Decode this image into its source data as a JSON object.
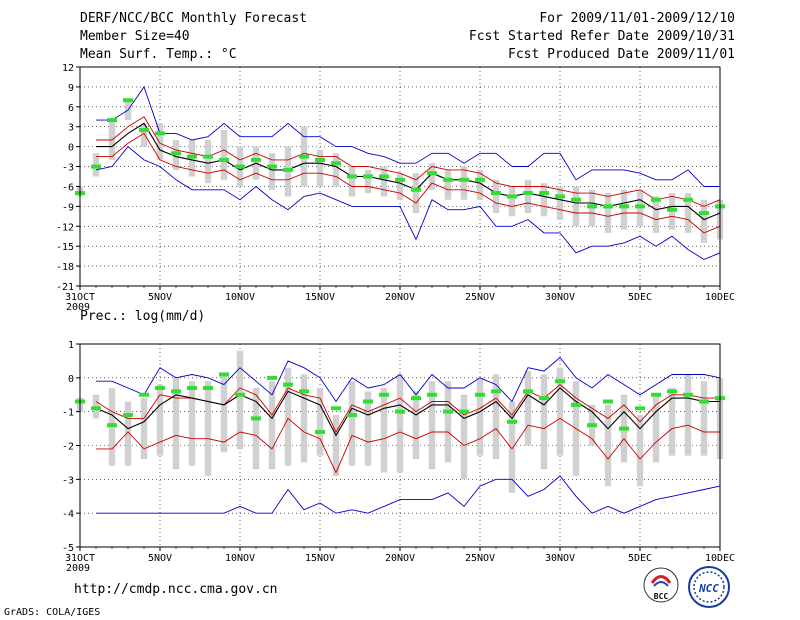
{
  "header": {
    "left_line1": "DERF/NCC/BCC Monthly Forecast",
    "left_line2": "Member Size=40",
    "right_line1": "For 2009/11/01-2009/12/10",
    "right_line2": "Fcst Started Refer Date 2009/10/31",
    "right_line3": "Fcst Produced Date 2009/11/01"
  },
  "footer": {
    "url": "http://cmdp.ncc.cma.gov.cn",
    "credit": "GrADS: COLA/IGES",
    "logo_bcc": "BCC",
    "logo_ncc": "NCC"
  },
  "colors": {
    "ensemble_mean": "#000000",
    "ensemble_range": "#0000cc",
    "spread_band": "#cc0000",
    "box": "#d0d0d0",
    "observed": "#33dd33",
    "grid": "#000000"
  },
  "chart_data": [
    {
      "type": "line",
      "title": "Mean Surf. Temp.: °C",
      "x": [
        1,
        2,
        3,
        4,
        5,
        6,
        7,
        8,
        9,
        10,
        11,
        12,
        13,
        14,
        15,
        16,
        17,
        18,
        19,
        20,
        21,
        22,
        23,
        24,
        25,
        26,
        27,
        28,
        29,
        30,
        31,
        32,
        33,
        34,
        35,
        36,
        37,
        38,
        39,
        40,
        41
      ],
      "x_ticks": [
        "31OCT",
        "5NOV",
        "10NOV",
        "15NOV",
        "20NOV",
        "25NOV",
        "30NOV",
        "5DEC",
        "10DEC"
      ],
      "x_tick_positions": [
        1,
        6,
        11,
        16,
        21,
        26,
        31,
        36,
        41
      ],
      "year_label": "2009",
      "ylim": [
        -21,
        12
      ],
      "y_ticks": [
        -21,
        -18,
        -15,
        -12,
        -9,
        -6,
        -3,
        0,
        3,
        6,
        9,
        12
      ],
      "series": [
        {
          "name": "ensemble-max",
          "values": [
            null,
            4,
            4,
            5.5,
            9,
            2,
            2,
            1,
            1.5,
            3.5,
            1.5,
            1.5,
            1.5,
            3.5,
            1.5,
            1.5,
            0,
            0,
            -1,
            -1.5,
            -2.5,
            -2.5,
            -1,
            -1,
            -2.5,
            -1,
            -1,
            -3,
            -3,
            -1,
            -1,
            -5,
            -3.5,
            -3.5,
            -3.5,
            -4,
            -5,
            -5,
            -3.5,
            -6,
            -6
          ]
        },
        {
          "name": "spread-upper",
          "values": [
            null,
            1,
            1,
            3,
            4.5,
            0.5,
            -0.5,
            -1,
            -1.5,
            -0.5,
            -2,
            -1,
            -2,
            -2,
            -1,
            -1.5,
            -1.5,
            -3,
            -3,
            -3.5,
            -4,
            -5,
            -3,
            -3.5,
            -3.5,
            -4,
            -5.5,
            -6,
            -6,
            -6,
            -6.5,
            -7,
            -7,
            -7.5,
            -7,
            -6.5,
            -8,
            -7.5,
            -8,
            -9,
            -8
          ]
        },
        {
          "name": "ensemble-mean",
          "values": [
            null,
            0,
            0,
            2,
            3.5,
            -0.5,
            -1.5,
            -2,
            -2.5,
            -2,
            -3.5,
            -2.5,
            -3.5,
            -3.5,
            -2.5,
            -2.5,
            -3,
            -4.5,
            -4.5,
            -5,
            -5.5,
            -6.5,
            -4,
            -5,
            -5,
            -5.5,
            -7,
            -7.5,
            -7,
            -7.5,
            -8,
            -8.5,
            -8.5,
            -9,
            -8.5,
            -8,
            -9.5,
            -9,
            -9,
            -11,
            -10
          ]
        },
        {
          "name": "spread-lower",
          "values": [
            null,
            -1.5,
            -1.5,
            0.5,
            2,
            -2,
            -3,
            -3.5,
            -4,
            -3.5,
            -5,
            -4,
            -5,
            -5,
            -4,
            -4,
            -4.5,
            -6,
            -6,
            -6.5,
            -7,
            -8.5,
            -5.5,
            -6.5,
            -6.5,
            -7,
            -8.5,
            -9,
            -8.5,
            -9,
            -9.5,
            -10,
            -10,
            -10.5,
            -10,
            -10,
            -11,
            -10.5,
            -11,
            -13,
            -12
          ]
        },
        {
          "name": "ensemble-min",
          "values": [
            null,
            -3.5,
            -3,
            0,
            -2,
            -3,
            -5,
            -6.5,
            -6.5,
            -6.5,
            -8,
            -6,
            -8,
            -9.5,
            -7.5,
            -7,
            -8,
            -9,
            -9,
            -9,
            -9,
            -14,
            -8,
            -9.5,
            -9.5,
            -9,
            -12,
            -12,
            -11,
            -13,
            -13,
            -16,
            -15,
            -15,
            -14.5,
            -13.5,
            -15,
            -13.5,
            -15.5,
            -17,
            -16
          ]
        },
        {
          "name": "observed",
          "values": [
            -7,
            -3,
            4,
            7,
            2.5,
            2,
            -1,
            -1.5,
            -1.5,
            -2,
            -3,
            -2,
            -3,
            -3.5,
            -1.5,
            -2,
            -2.5,
            -4.5,
            -4.5,
            -4.5,
            -5,
            -6.5,
            -4,
            -5,
            -5,
            -5,
            -7,
            -7.5,
            -7,
            -7,
            -7.5,
            -8,
            -9,
            -9,
            -9,
            -9,
            -8,
            -9.5,
            -8,
            -10,
            -9
          ]
        }
      ],
      "boxes": [
        [
          -7.5,
          -6
        ],
        [
          -4.5,
          -1
        ],
        [
          -2,
          4
        ],
        [
          4,
          7
        ],
        [
          0,
          3.5
        ],
        [
          -2,
          3.5
        ],
        [
          -3.5,
          1
        ],
        [
          -4.5,
          1
        ],
        [
          -5.5,
          1
        ],
        [
          -5,
          2.5
        ],
        [
          -6,
          0
        ],
        [
          -5,
          0
        ],
        [
          -6.5,
          -1
        ],
        [
          -7.5,
          0
        ],
        [
          -6,
          3
        ],
        [
          -6,
          -0.5
        ],
        [
          -6,
          -1
        ],
        [
          -7.5,
          -3
        ],
        [
          -7,
          -3.5
        ],
        [
          -7.5,
          -3
        ],
        [
          -8,
          -4
        ],
        [
          -10,
          -4
        ],
        [
          -6.5,
          -2.5
        ],
        [
          -8,
          -3.5
        ],
        [
          -8,
          -3
        ],
        [
          -8,
          -3.5
        ],
        [
          -10,
          -5
        ],
        [
          -10.5,
          -6
        ],
        [
          -10,
          -5
        ],
        [
          -10.5,
          -5.5
        ],
        [
          -11,
          -6
        ],
        [
          -12,
          -6
        ],
        [
          -12,
          -6.5
        ],
        [
          -13,
          -7
        ],
        [
          -12.5,
          -6.5
        ],
        [
          -12,
          -6.5
        ],
        [
          -13,
          -7.5
        ],
        [
          -12.5,
          -7
        ],
        [
          -13,
          -7
        ],
        [
          -14.5,
          -8
        ],
        [
          -14,
          -8
        ]
      ]
    },
    {
      "type": "line",
      "title": "Prec.: log(mm/d)",
      "x": [
        1,
        2,
        3,
        4,
        5,
        6,
        7,
        8,
        9,
        10,
        11,
        12,
        13,
        14,
        15,
        16,
        17,
        18,
        19,
        20,
        21,
        22,
        23,
        24,
        25,
        26,
        27,
        28,
        29,
        30,
        31,
        32,
        33,
        34,
        35,
        36,
        37,
        38,
        39,
        40,
        41
      ],
      "x_ticks": [
        "31OCT",
        "5NOV",
        "10NOV",
        "15NOV",
        "20NOV",
        "25NOV",
        "30NOV",
        "5DEC",
        "10DEC"
      ],
      "x_tick_positions": [
        1,
        6,
        11,
        16,
        21,
        26,
        31,
        36,
        41
      ],
      "year_label": "2009",
      "ylim": [
        -5,
        1
      ],
      "y_ticks": [
        -5,
        -4,
        -3,
        -2,
        -1,
        0,
        1
      ],
      "series": [
        {
          "name": "ensemble-max",
          "values": [
            null,
            -0.1,
            -0.1,
            -0.3,
            -0.5,
            0.3,
            0,
            0.1,
            0,
            -0.2,
            0.3,
            -0.1,
            -0.5,
            0.5,
            0.3,
            0,
            -0.7,
            0,
            -0.3,
            -0.2,
            0.1,
            -0.5,
            0.1,
            -0.3,
            -0.3,
            0,
            -0.2,
            -0.7,
            0.3,
            0.2,
            0.6,
            0,
            -0.3,
            0.1,
            -0.2,
            -0.5,
            -0.2,
            0.1,
            0.1,
            0.1,
            0
          ]
        },
        {
          "name": "spread-upper",
          "values": [
            null,
            -0.7,
            -1,
            -1.2,
            -1.2,
            -0.5,
            -0.6,
            -0.6,
            -0.7,
            -0.8,
            -0.3,
            -0.5,
            -1.1,
            -0.3,
            -0.5,
            -0.6,
            -1.6,
            -0.8,
            -1,
            -0.8,
            -0.6,
            -1,
            -0.7,
            -0.7,
            -1.1,
            -0.9,
            -0.6,
            -1.1,
            -0.4,
            -0.6,
            -0.2,
            -0.6,
            -0.9,
            -1.2,
            -0.8,
            -1.3,
            -0.8,
            -0.5,
            -0.5,
            -0.6,
            -0.6
          ]
        },
        {
          "name": "ensemble-mean",
          "values": [
            null,
            -0.9,
            -1.1,
            -1.5,
            -1.3,
            -0.8,
            -0.5,
            -0.6,
            -0.7,
            -0.8,
            -0.5,
            -0.7,
            -1.2,
            -0.4,
            -0.6,
            -0.8,
            -1.7,
            -0.9,
            -1.1,
            -0.9,
            -0.8,
            -1.1,
            -0.8,
            -0.8,
            -1.2,
            -1,
            -0.7,
            -1.2,
            -0.5,
            -0.8,
            -0.3,
            -0.7,
            -1,
            -1.5,
            -1,
            -1.5,
            -1,
            -0.6,
            -0.6,
            -0.7,
            -0.7
          ]
        },
        {
          "name": "spread-lower",
          "values": [
            null,
            -2.1,
            -2.1,
            -1.6,
            -2.1,
            -1.9,
            -1.7,
            -1.8,
            -1.8,
            -1.9,
            -1.6,
            -1.7,
            -2.1,
            -1.2,
            -1.6,
            -1.8,
            -2.8,
            -1.7,
            -1.9,
            -1.8,
            -1.6,
            -1.8,
            -1.6,
            -1.6,
            -2,
            -1.8,
            -1.5,
            -2.1,
            -1.4,
            -1.5,
            -1.2,
            -1.5,
            -1.8,
            -2.4,
            -1.8,
            -2.4,
            -1.9,
            -1.5,
            -1.4,
            -1.6,
            -1.6
          ]
        },
        {
          "name": "ensemble-min",
          "values": [
            null,
            -4,
            -4,
            -4,
            -4,
            -4,
            -4,
            -4,
            -4,
            -4,
            -3.8,
            -4,
            -4,
            -3.3,
            -3.9,
            -3.7,
            -4,
            -3.9,
            -4,
            -3.8,
            -3.6,
            -3.6,
            -3.6,
            -3.4,
            -3.8,
            -3.2,
            -3,
            -3,
            -3.5,
            -3.3,
            -2.9,
            -3.5,
            -4,
            -3.8,
            -4,
            -3.8,
            -3.6,
            -3.5,
            -3.4,
            -3.3,
            -3.2
          ]
        },
        {
          "name": "observed",
          "values": [
            -0.7,
            -0.9,
            -1.4,
            -1.1,
            -0.5,
            -0.3,
            -0.4,
            -0.3,
            -0.3,
            0.1,
            -0.5,
            -1.2,
            0,
            -0.2,
            -0.4,
            -1.6,
            -0.9,
            -1.1,
            -0.7,
            -0.5,
            -1,
            -0.6,
            -0.5,
            -1,
            -1,
            -0.5,
            -0.4,
            -1.3,
            -0.4,
            -0.6,
            -0.1,
            -0.8,
            -1.4,
            -0.7,
            -1.5,
            -0.9,
            -0.5,
            -0.4,
            -0.5,
            -0.7,
            -0.6
          ]
        }
      ],
      "boxes": [
        [
          -1,
          -0.6
        ],
        [
          -1.2,
          -0.5
        ],
        [
          -2.6,
          -0.3
        ],
        [
          -2.6,
          -0.7
        ],
        [
          -2.4,
          -0.6
        ],
        [
          -2.3,
          -0.2
        ],
        [
          -2.7,
          0
        ],
        [
          -2.6,
          -0.1
        ],
        [
          -2.9,
          -0.1
        ],
        [
          -2.2,
          0.1
        ],
        [
          -2.1,
          0.8
        ],
        [
          -2.7,
          -0.3
        ],
        [
          -2.7,
          -0.1
        ],
        [
          -2.6,
          0.3
        ],
        [
          -2.5,
          0.1
        ],
        [
          -2.3,
          -0.3
        ],
        [
          -2.9,
          -1.1
        ],
        [
          -2.6,
          -0.1
        ],
        [
          -2.6,
          -0.4
        ],
        [
          -2.8,
          -0.3
        ],
        [
          -2.8,
          0.1
        ],
        [
          -2.4,
          -0.4
        ],
        [
          -2.7,
          -0.1
        ],
        [
          -2.5,
          -0.1
        ],
        [
          -3,
          -0.5
        ],
        [
          -2.3,
          0
        ],
        [
          -2.4,
          0.1
        ],
        [
          -3.4,
          -0.7
        ],
        [
          -2,
          0.2
        ],
        [
          -2.7,
          0.1
        ],
        [
          -2.3,
          0.3
        ],
        [
          -2.9,
          -0.1
        ],
        [
          -2,
          -0.8
        ],
        [
          -3.2,
          -0.8
        ],
        [
          -2.5,
          -0.5
        ],
        [
          -3.2,
          -1.1
        ],
        [
          -2.5,
          -0.5
        ],
        [
          -2.3,
          -0.3
        ],
        [
          -2.3,
          0.1
        ],
        [
          -2.3,
          -0.1
        ],
        [
          -2.4,
          0
        ]
      ]
    }
  ]
}
